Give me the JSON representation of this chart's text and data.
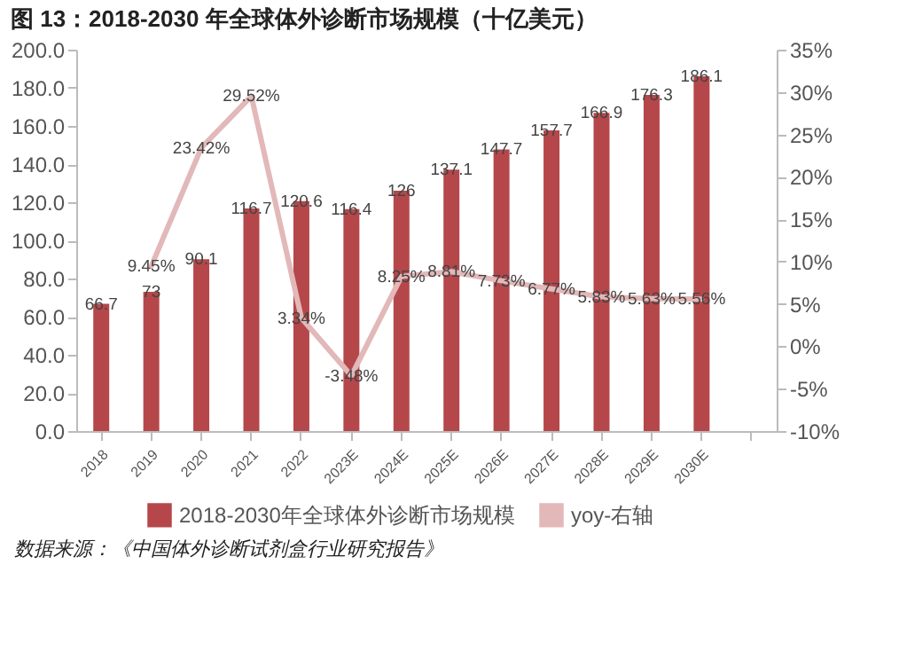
{
  "chart_data": {
    "type": "bar",
    "title": "图 13：2018-2030 年全球体外诊断市场规模（十亿美元）",
    "categories": [
      "2018",
      "2019",
      "2020",
      "2021",
      "2022",
      "2023E",
      "2024E",
      "2025E",
      "2026E",
      "2027E",
      "2028E",
      "2029E",
      "2030E",
      null
    ],
    "series": [
      {
        "name": "2018-2030年全球体外诊断市场规模",
        "color": "#b5474a",
        "values": [
          66.7,
          73,
          90.1,
          116.7,
          120.6,
          116.4,
          126,
          137.1,
          147.7,
          157.7,
          166.9,
          176.3,
          186.1,
          null
        ],
        "value_labels": [
          "66.7",
          "73",
          "90.1",
          "116.7",
          "120.6",
          "116.4",
          "126",
          "137.1",
          "147.7",
          "157.7",
          "166.9",
          "176.3",
          "186.1",
          null
        ]
      },
      {
        "name": "yoy-右轴",
        "type": "line",
        "axis": "y2",
        "color": "#e2b8b8",
        "values": [
          null,
          9.45,
          23.42,
          29.52,
          3.34,
          -3.48,
          8.25,
          8.81,
          7.73,
          6.77,
          5.83,
          5.63,
          5.56,
          null
        ],
        "value_labels": [
          null,
          "9.45%",
          "23.42%",
          "29.52%",
          "3.34%",
          "-3.48%",
          "8.25%",
          "8.81%",
          "7.73%",
          "6.77%",
          "5.83%",
          "5.63%",
          "5.56%",
          null
        ]
      }
    ],
    "ylim": [
      0,
      200
    ],
    "yticks": [
      {
        "value": 0,
        "label": "0.0"
      },
      {
        "value": 20,
        "label": "20.0"
      },
      {
        "value": 40,
        "label": "40.0"
      },
      {
        "value": 60,
        "label": "60.0"
      },
      {
        "value": 80,
        "label": "80.0"
      },
      {
        "value": 100,
        "label": "100.0"
      },
      {
        "value": 120,
        "label": "120.0"
      },
      {
        "value": 140,
        "label": "140.0"
      },
      {
        "value": 160,
        "label": "160.0"
      },
      {
        "value": 180,
        "label": "180.0"
      },
      {
        "value": 200,
        "label": "200.0"
      }
    ],
    "y2lim": [
      -10,
      35
    ],
    "y2ticks": [
      {
        "value": -10,
        "label": "-10%"
      },
      {
        "value": -5,
        "label": "-5%"
      },
      {
        "value": 0,
        "label": "0%"
      },
      {
        "value": 5,
        "label": "5%"
      },
      {
        "value": 10,
        "label": "10%"
      },
      {
        "value": 15,
        "label": "15%"
      },
      {
        "value": 20,
        "label": "20%"
      },
      {
        "value": 25,
        "label": "25%"
      },
      {
        "value": 30,
        "label": "30%"
      },
      {
        "value": 35,
        "label": "35%"
      }
    ],
    "grid": false,
    "legend": "bottom",
    "marker": "none",
    "line_style": "solid",
    "annotations": [
      "数据来源：《中国体外诊断试剂盒行业研究报告》"
    ]
  }
}
